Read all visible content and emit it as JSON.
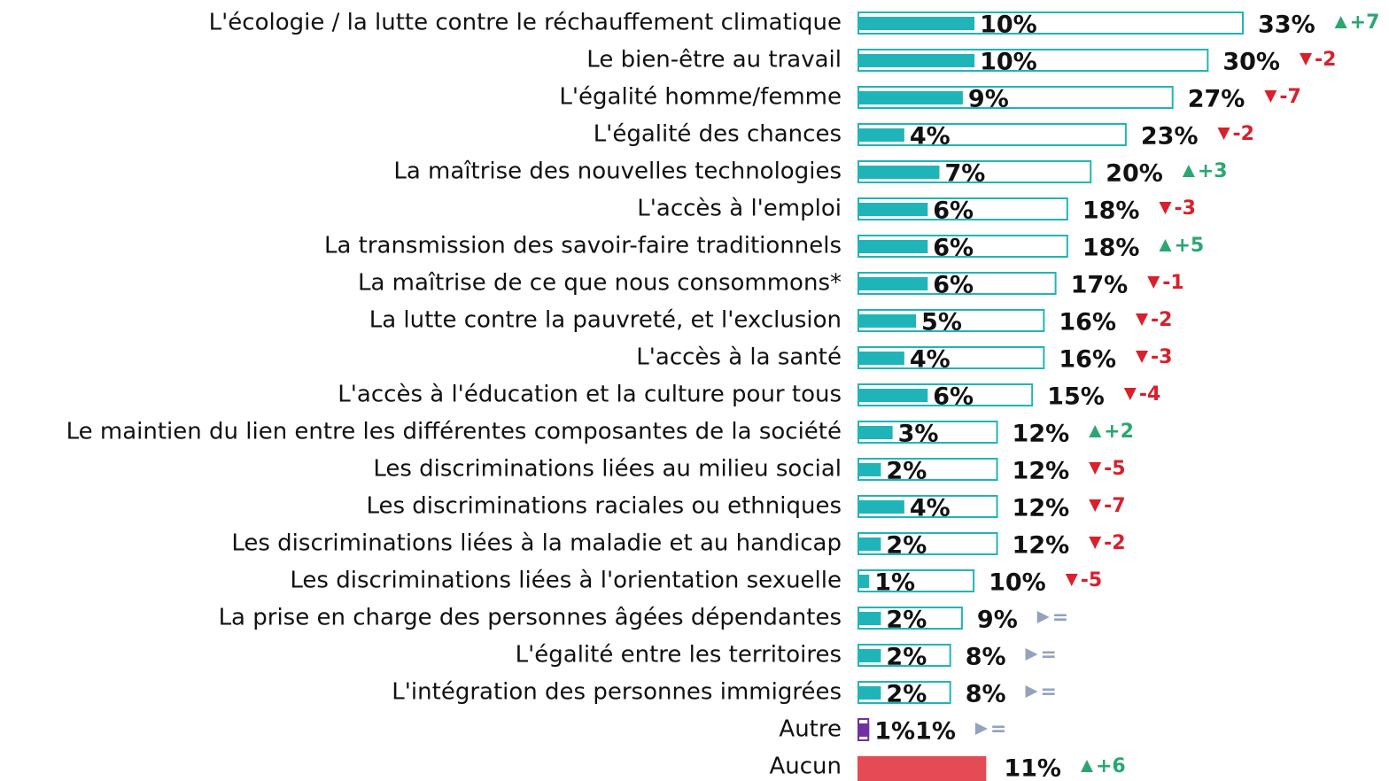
{
  "chart_data": {
    "type": "bar",
    "categories": [
      "L'écologie / la lutte contre le réchauffement climatique",
      "Le bien-être au travail",
      "L'égalité homme/femme",
      "L'égalité des chances",
      "La maîtrise des nouvelles technologies",
      "L'accès à l'emploi",
      "La transmission des savoir-faire traditionnels",
      "La maîtrise de ce que nous consommons*",
      "La lutte contre la pauvreté, et l'exclusion",
      "L'accès à la santé",
      "L'accès à l'éducation et la culture pour tous",
      "Le maintien du lien entre les différentes composantes de la société",
      "Les discriminations liées au milieu social",
      "Les discriminations raciales ou ethniques",
      "Les discriminations liées à la maladie et au handicap",
      "Les discriminations liées à l'orientation sexuelle",
      "La prise en charge des personnes âgées dépendantes",
      "L'égalité entre les territoires",
      "L'intégration des personnes immigrées",
      "Autre",
      "Aucun"
    ],
    "series": [
      {
        "values": [
          10,
          10,
          9,
          4,
          7,
          6,
          6,
          6,
          5,
          4,
          6,
          3,
          2,
          4,
          2,
          1,
          2,
          2,
          2,
          1,
          null
        ],
        "value_labels": [
          "10%",
          "10%",
          "9%",
          "4%",
          "7%",
          "6%",
          "6%",
          "6%",
          "5%",
          "4%",
          "6%",
          "3%",
          "2%",
          "4%",
          "2%",
          "1%",
          "2%",
          "2%",
          "2%",
          "1%",
          null
        ],
        "colors": [
          "#1fb5b8",
          "#1fb5b8",
          "#1fb5b8",
          "#1fb5b8",
          "#1fb5b8",
          "#1fb5b8",
          "#1fb5b8",
          "#1fb5b8",
          "#1fb5b8",
          "#1fb5b8",
          "#1fb5b8",
          "#1fb5b8",
          "#1fb5b8",
          "#1fb5b8",
          "#1fb5b8",
          "#1fb5b8",
          "#1fb5b8",
          "#1fb5b8",
          "#1fb5b8",
          "#7030a0",
          null
        ]
      },
      {
        "values": [
          33,
          30,
          27,
          23,
          20,
          18,
          18,
          17,
          16,
          16,
          15,
          12,
          12,
          12,
          12,
          10,
          9,
          8,
          8,
          1,
          11
        ],
        "value_labels": [
          "33%",
          "30%",
          "27%",
          "23%",
          "20%",
          "18%",
          "18%",
          "17%",
          "16%",
          "16%",
          "15%",
          "12%",
          "12%",
          "12%",
          "12%",
          "10%",
          "9%",
          "8%",
          "8%",
          "1%",
          "11%"
        ],
        "colors": [
          "#1fb5b8",
          "#1fb5b8",
          "#1fb5b8",
          "#1fb5b8",
          "#1fb5b8",
          "#1fb5b8",
          "#1fb5b8",
          "#1fb5b8",
          "#1fb5b8",
          "#1fb5b8",
          "#1fb5b8",
          "#1fb5b8",
          "#1fb5b8",
          "#1fb5b8",
          "#1fb5b8",
          "#1fb5b8",
          "#1fb5b8",
          "#1fb5b8",
          "#1fb5b8",
          "#7030a0",
          "#e54b55"
        ]
      },
      {
        "values": [
          7,
          -2,
          -7,
          -2,
          3,
          -3,
          5,
          -1,
          -2,
          -3,
          -4,
          2,
          -5,
          -7,
          -2,
          -5,
          0,
          0,
          0,
          0,
          6
        ],
        "value_labels": [
          "+7",
          "-2",
          "-7",
          "-2",
          "+3",
          "-3",
          "+5",
          "-1",
          "-2",
          "-3",
          "-4",
          "+2",
          "-5",
          "-7",
          "-2",
          "-5",
          "=",
          "=",
          "=",
          "=",
          "+6"
        ],
        "colors": {
          "up": "#2ba672",
          "down": "#d9202c",
          "same": "#91a3bd"
        }
      }
    ]
  }
}
